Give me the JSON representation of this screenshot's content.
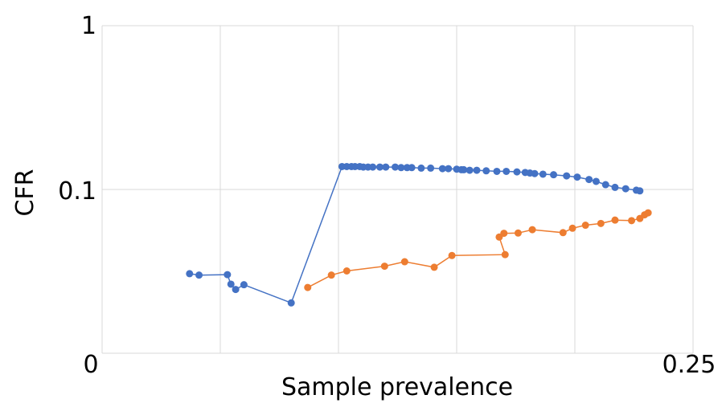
{
  "chart_data": {
    "type": "scatter",
    "xlabel": "Sample prevalence",
    "ylabel": "CFR",
    "xlim": [
      0,
      0.25
    ],
    "ylim": [
      0.01,
      1
    ],
    "y_scale": "log",
    "x_tick_labels": [
      "0",
      "0.25"
    ],
    "y_tick_labels": [
      "1",
      "0.1"
    ],
    "grid": true,
    "legend": "none",
    "series": [
      {
        "color": "#4472C4",
        "points": [
          [
            0.037,
            0.0306
          ],
          [
            0.041,
            0.03
          ],
          [
            0.053,
            0.0302
          ],
          [
            0.0545,
            0.0264
          ],
          [
            0.0565,
            0.0245
          ],
          [
            0.06,
            0.0262
          ],
          [
            0.08,
            0.0203
          ],
          [
            0.1015,
            0.138
          ],
          [
            0.1035,
            0.138
          ],
          [
            0.1055,
            0.138
          ],
          [
            0.107,
            0.138
          ],
          [
            0.109,
            0.138
          ],
          [
            0.1105,
            0.137
          ],
          [
            0.1125,
            0.137
          ],
          [
            0.1145,
            0.137
          ],
          [
            0.1175,
            0.137
          ],
          [
            0.12,
            0.137
          ],
          [
            0.124,
            0.137
          ],
          [
            0.1265,
            0.136
          ],
          [
            0.129,
            0.136
          ],
          [
            0.131,
            0.136
          ],
          [
            0.135,
            0.135
          ],
          [
            0.139,
            0.135
          ],
          [
            0.144,
            0.134
          ],
          [
            0.1465,
            0.134
          ],
          [
            0.15,
            0.133
          ],
          [
            0.152,
            0.132
          ],
          [
            0.153,
            0.132
          ],
          [
            0.1555,
            0.131
          ],
          [
            0.1585,
            0.131
          ],
          [
            0.1625,
            0.13
          ],
          [
            0.167,
            0.129
          ],
          [
            0.171,
            0.129
          ],
          [
            0.1755,
            0.128
          ],
          [
            0.179,
            0.127
          ],
          [
            0.181,
            0.126
          ],
          [
            0.183,
            0.125
          ],
          [
            0.1865,
            0.124
          ],
          [
            0.191,
            0.123
          ],
          [
            0.1965,
            0.121
          ],
          [
            0.201,
            0.119
          ],
          [
            0.206,
            0.115
          ],
          [
            0.209,
            0.112
          ],
          [
            0.213,
            0.107
          ],
          [
            0.217,
            0.103
          ],
          [
            0.2215,
            0.101
          ],
          [
            0.226,
            0.099
          ],
          [
            0.2275,
            0.098
          ]
        ]
      },
      {
        "color": "#ED7D31",
        "points": [
          [
            0.087,
            0.0252
          ],
          [
            0.097,
            0.03
          ],
          [
            0.1035,
            0.0318
          ],
          [
            0.1195,
            0.034
          ],
          [
            0.128,
            0.0362
          ],
          [
            0.1405,
            0.0335
          ],
          [
            0.148,
            0.0395
          ],
          [
            0.1705,
            0.04
          ],
          [
            0.168,
            0.0512
          ],
          [
            0.17,
            0.054
          ],
          [
            0.176,
            0.0542
          ],
          [
            0.182,
            0.0568
          ],
          [
            0.195,
            0.0545
          ],
          [
            0.199,
            0.058
          ],
          [
            0.2045,
            0.0605
          ],
          [
            0.211,
            0.062
          ],
          [
            0.217,
            0.065
          ],
          [
            0.224,
            0.0645
          ],
          [
            0.2275,
            0.0665
          ],
          [
            0.2295,
            0.07
          ],
          [
            0.231,
            0.072
          ]
        ]
      }
    ]
  }
}
